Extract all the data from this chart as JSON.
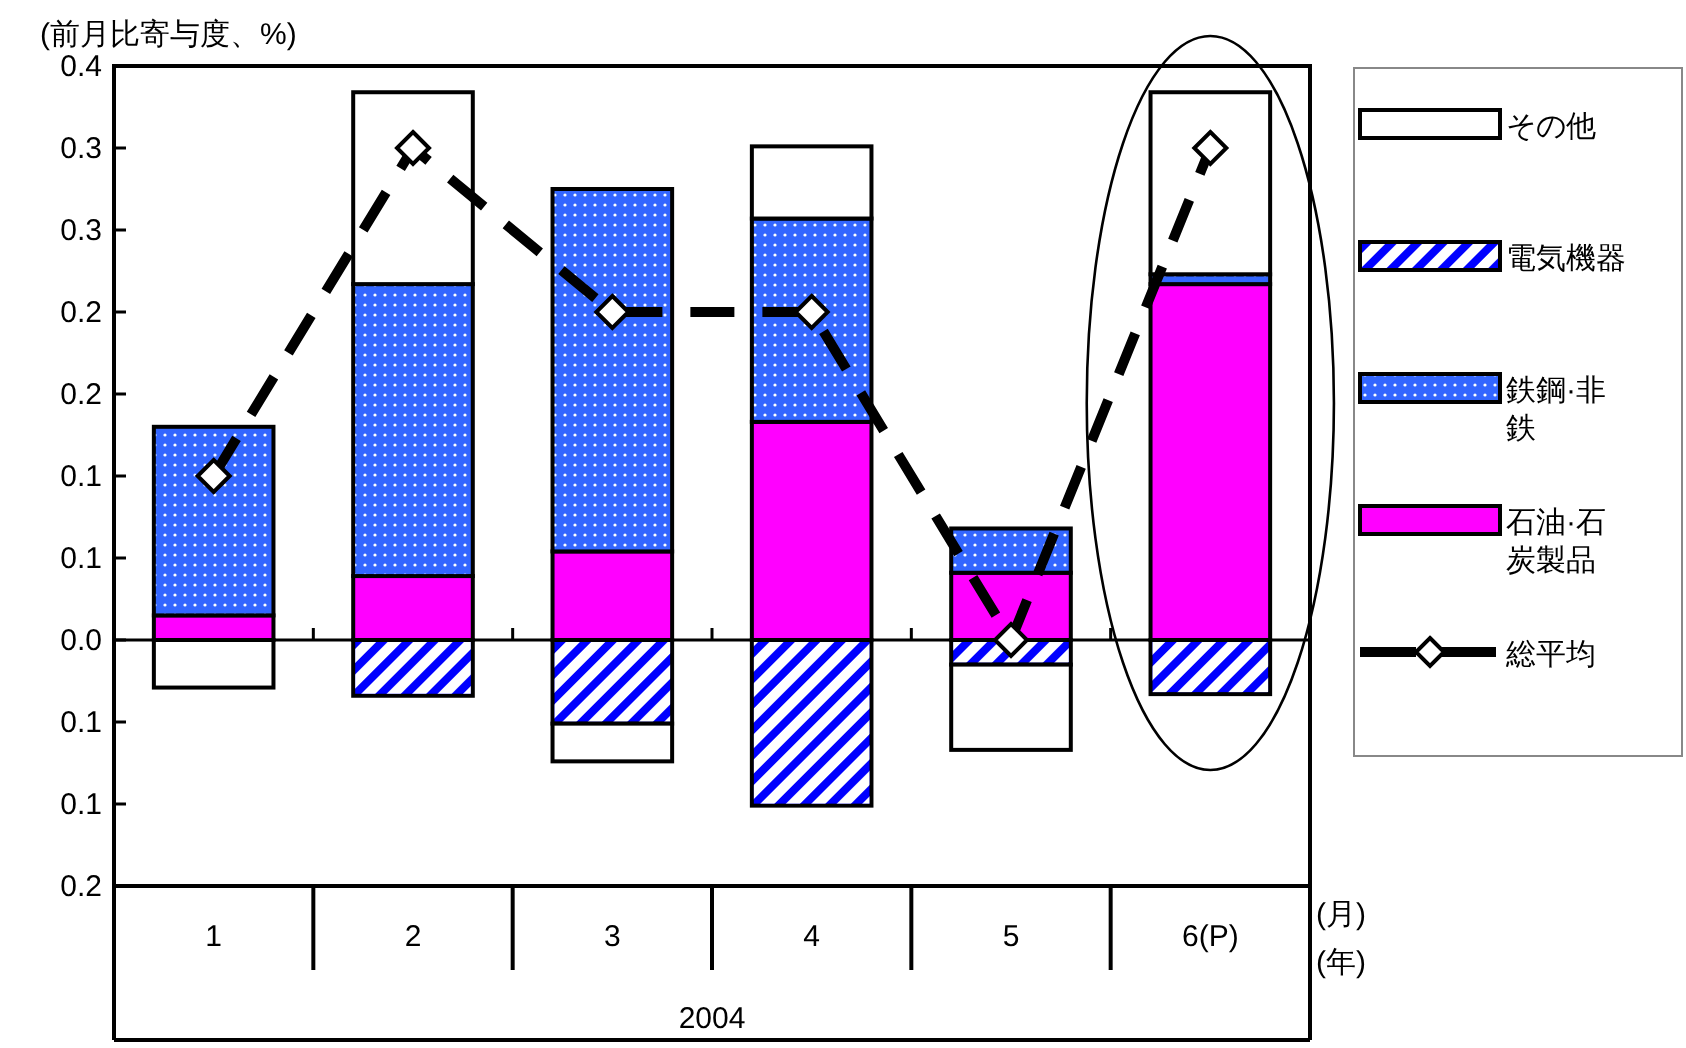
{
  "chart_data": {
    "type": "bar",
    "stacked": true,
    "ylabel": "(前月比寄与度、%)",
    "categories": [
      "1",
      "2",
      "3",
      "4",
      "5",
      "6(P)"
    ],
    "series": [
      {
        "name": "石油·石炭製品",
        "color": "#ff00ff",
        "values": [
          0.015,
          0.039,
          0.054,
          0.133,
          0.041,
          0.217
        ]
      },
      {
        "name": "鉄鋼·非鉄",
        "color": "#3366ff",
        "values": [
          0.115,
          0.178,
          0.221,
          0.124,
          0.027,
          0.006
        ]
      },
      {
        "name": "電気機器",
        "color": "#0000ff",
        "values": [
          null,
          -0.034,
          -0.051,
          -0.101,
          -0.015,
          -0.033
        ]
      },
      {
        "name": "その他",
        "color": "#ffffff",
        "values": [
          -0.029,
          0.117,
          -0.023,
          0.044,
          -0.052,
          0.111
        ]
      },
      {
        "name": "総平均",
        "type": "line",
        "color": "#000000",
        "marker": "diamond",
        "line_style": "dashed",
        "values": [
          0.1,
          0.3,
          0.2,
          0.2,
          0,
          0.3
        ]
      }
    ],
    "ylim": [
      -0.15,
      0.35
    ],
    "yticks": [
      {
        "value": -0.15,
        "label": "0.2"
      },
      {
        "value": -0.1,
        "label": "0.1"
      },
      {
        "value": -0.05,
        "label": "0.1"
      },
      {
        "value": 0,
        "label": "0.0"
      },
      {
        "value": 0.05,
        "label": "0.1"
      },
      {
        "value": 0.1,
        "label": "0.1"
      },
      {
        "value": 0.15,
        "label": "0.2"
      },
      {
        "value": 0.2,
        "label": "0.2"
      },
      {
        "value": 0.25,
        "label": "0.3"
      },
      {
        "value": 0.3,
        "label": "0.3"
      },
      {
        "value": 0.35,
        "label": "0.4"
      }
    ],
    "legend": "right",
    "ref_lines": [
      {
        "axis": "y",
        "value": 0,
        "color": "#000000"
      }
    ],
    "annotations": [
      "2004",
      "(月)",
      "(年)"
    ]
  }
}
